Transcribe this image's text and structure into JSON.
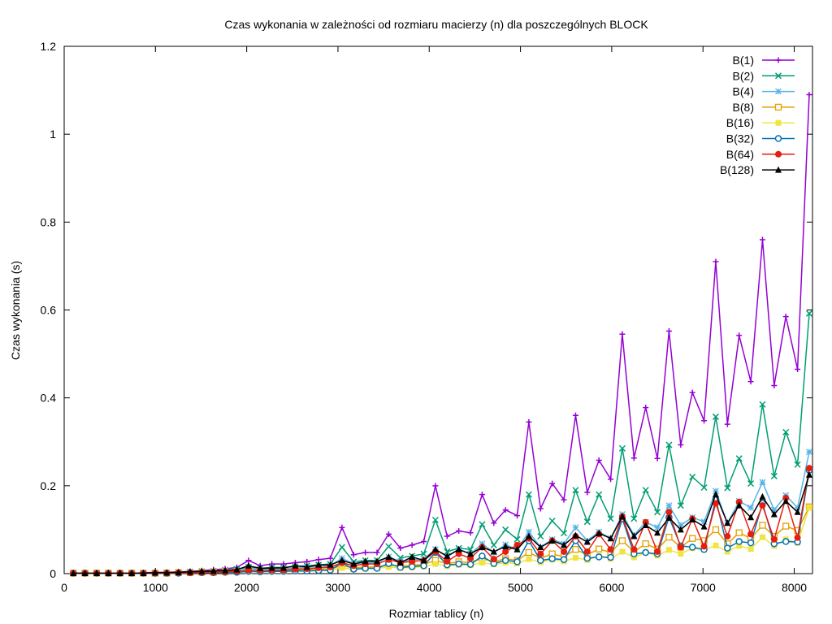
{
  "chart_data": {
    "type": "line",
    "title": "Czas wykonania w zależności od rozmiaru macierzy (n) dla poszczególnych BLOCK",
    "xlabel": "Rozmiar tablicy (n)",
    "ylabel": "Czas wykonania (s)",
    "xlim": [
      0,
      8200
    ],
    "ylim": [
      0,
      1.2
    ],
    "xticks": [
      0,
      1000,
      2000,
      3000,
      4000,
      5000,
      6000,
      7000,
      8000
    ],
    "xtick_labels": [
      "0",
      "1000",
      "2000",
      "3000",
      "4000",
      "5000",
      "6000",
      "7000",
      "8000"
    ],
    "yticks": [
      0,
      0.2,
      0.4,
      0.6,
      0.8,
      1.0,
      1.2
    ],
    "ytick_labels": [
      "0",
      "0.2",
      "0.4",
      "0.6",
      "0.8",
      "1",
      "1.2"
    ],
    "grid": false,
    "legend_position": "top-right",
    "x": [
      100,
      228,
      356,
      484,
      612,
      740,
      868,
      996,
      1124,
      1252,
      1380,
      1508,
      1636,
      1764,
      1892,
      2020,
      2148,
      2276,
      2404,
      2532,
      2660,
      2788,
      2916,
      3044,
      3172,
      3300,
      3428,
      3556,
      3684,
      3812,
      3940,
      4068,
      4196,
      4324,
      4452,
      4580,
      4708,
      4836,
      4964,
      5092,
      5220,
      5348,
      5476,
      5604,
      5732,
      5860,
      5988,
      6116,
      6244,
      6372,
      6500,
      6628,
      6756,
      6884,
      7012,
      7140,
      7268,
      7396,
      7524,
      7652,
      7780,
      7908,
      8036,
      8164
    ],
    "series": [
      {
        "name": "B(1)",
        "color": "#9400d3",
        "marker": "plus",
        "values": [
          0.001,
          0.001,
          0.001,
          0.001,
          0.001,
          0.001,
          0.002,
          0.003,
          0.003,
          0.004,
          0.005,
          0.007,
          0.009,
          0.011,
          0.014,
          0.03,
          0.018,
          0.022,
          0.022,
          0.025,
          0.027,
          0.032,
          0.035,
          0.105,
          0.043,
          0.048,
          0.048,
          0.09,
          0.058,
          0.065,
          0.073,
          0.2,
          0.085,
          0.097,
          0.093,
          0.18,
          0.115,
          0.145,
          0.132,
          0.345,
          0.148,
          0.205,
          0.168,
          0.36,
          0.185,
          0.258,
          0.215,
          0.545,
          0.263,
          0.378,
          0.262,
          0.552,
          0.293,
          0.412,
          0.348,
          0.71,
          0.34,
          0.542,
          0.437,
          0.76,
          0.428,
          0.585,
          0.465,
          1.09
        ]
      },
      {
        "name": "B(2)",
        "color": "#009e73",
        "marker": "cross",
        "values": [
          0.001,
          0.001,
          0.001,
          0.001,
          0.001,
          0.001,
          0.001,
          0.002,
          0.002,
          0.003,
          0.004,
          0.005,
          0.006,
          0.008,
          0.01,
          0.015,
          0.012,
          0.014,
          0.014,
          0.016,
          0.018,
          0.02,
          0.022,
          0.06,
          0.027,
          0.03,
          0.03,
          0.062,
          0.036,
          0.04,
          0.045,
          0.122,
          0.05,
          0.058,
          0.055,
          0.112,
          0.065,
          0.1,
          0.078,
          0.18,
          0.085,
          0.12,
          0.092,
          0.19,
          0.118,
          0.18,
          0.125,
          0.285,
          0.125,
          0.19,
          0.14,
          0.293,
          0.155,
          0.22,
          0.196,
          0.357,
          0.195,
          0.262,
          0.205,
          0.385,
          0.222,
          0.322,
          0.248,
          0.592
        ]
      },
      {
        "name": "B(4)",
        "color": "#56b4e9",
        "marker": "star",
        "values": [
          0.001,
          0.001,
          0.001,
          0.001,
          0.001,
          0.001,
          0.001,
          0.001,
          0.002,
          0.002,
          0.003,
          0.004,
          0.005,
          0.006,
          0.007,
          0.012,
          0.01,
          0.011,
          0.011,
          0.013,
          0.014,
          0.016,
          0.018,
          0.035,
          0.022,
          0.024,
          0.025,
          0.038,
          0.028,
          0.031,
          0.034,
          0.055,
          0.038,
          0.055,
          0.045,
          0.068,
          0.048,
          0.066,
          0.055,
          0.095,
          0.06,
          0.078,
          0.068,
          0.105,
          0.075,
          0.095,
          0.08,
          0.135,
          0.088,
          0.117,
          0.105,
          0.155,
          0.11,
          0.128,
          0.118,
          0.188,
          0.115,
          0.165,
          0.15,
          0.208,
          0.145,
          0.178,
          0.15,
          0.277
        ]
      },
      {
        "name": "B(8)",
        "color": "#e69f00",
        "marker": "open-square",
        "values": [
          0.001,
          0.001,
          0.001,
          0.001,
          0.001,
          0.001,
          0.001,
          0.001,
          0.001,
          0.002,
          0.002,
          0.003,
          0.003,
          0.004,
          0.005,
          0.007,
          0.006,
          0.007,
          0.007,
          0.008,
          0.009,
          0.01,
          0.011,
          0.018,
          0.013,
          0.015,
          0.015,
          0.02,
          0.017,
          0.019,
          0.021,
          0.03,
          0.023,
          0.027,
          0.025,
          0.035,
          0.027,
          0.034,
          0.03,
          0.048,
          0.035,
          0.045,
          0.038,
          0.055,
          0.043,
          0.056,
          0.048,
          0.075,
          0.05,
          0.068,
          0.056,
          0.083,
          0.06,
          0.08,
          0.075,
          0.1,
          0.068,
          0.093,
          0.08,
          0.11,
          0.085,
          0.108,
          0.098,
          0.152
        ]
      },
      {
        "name": "B(16)",
        "color": "#f0e442",
        "marker": "filled-square",
        "values": [
          0.001,
          0.001,
          0.001,
          0.001,
          0.001,
          0.001,
          0.001,
          0.001,
          0.001,
          0.001,
          0.002,
          0.002,
          0.003,
          0.003,
          0.004,
          0.005,
          0.005,
          0.005,
          0.006,
          0.006,
          0.007,
          0.008,
          0.009,
          0.013,
          0.01,
          0.011,
          0.012,
          0.015,
          0.013,
          0.014,
          0.016,
          0.022,
          0.017,
          0.02,
          0.019,
          0.025,
          0.021,
          0.025,
          0.023,
          0.033,
          0.026,
          0.032,
          0.028,
          0.036,
          0.031,
          0.04,
          0.034,
          0.05,
          0.037,
          0.048,
          0.041,
          0.054,
          0.045,
          0.058,
          0.054,
          0.064,
          0.05,
          0.063,
          0.056,
          0.083,
          0.063,
          0.078,
          0.07,
          0.15
        ]
      },
      {
        "name": "B(32)",
        "color": "#0072b2",
        "marker": "open-circle",
        "values": [
          0.001,
          0.001,
          0.001,
          0.001,
          0.001,
          0.001,
          0.001,
          0.001,
          0.001,
          0.001,
          0.002,
          0.002,
          0.002,
          0.003,
          0.003,
          0.005,
          0.004,
          0.005,
          0.005,
          0.006,
          0.006,
          0.007,
          0.008,
          0.025,
          0.01,
          0.012,
          0.012,
          0.023,
          0.014,
          0.016,
          0.018,
          0.048,
          0.02,
          0.022,
          0.021,
          0.04,
          0.023,
          0.03,
          0.027,
          0.075,
          0.03,
          0.034,
          0.032,
          0.075,
          0.035,
          0.038,
          0.037,
          0.125,
          0.045,
          0.048,
          0.045,
          0.128,
          0.063,
          0.06,
          0.055,
          0.17,
          0.058,
          0.073,
          0.07,
          0.16,
          0.068,
          0.073,
          0.072,
          0.235
        ]
      },
      {
        "name": "B(64)",
        "color": "#e51e10",
        "marker": "filled-circle",
        "values": [
          0.001,
          0.001,
          0.001,
          0.001,
          0.001,
          0.001,
          0.001,
          0.001,
          0.001,
          0.002,
          0.002,
          0.003,
          0.003,
          0.004,
          0.005,
          0.008,
          0.007,
          0.008,
          0.008,
          0.01,
          0.011,
          0.013,
          0.015,
          0.025,
          0.018,
          0.022,
          0.022,
          0.032,
          0.025,
          0.028,
          0.03,
          0.05,
          0.028,
          0.045,
          0.035,
          0.06,
          0.033,
          0.05,
          0.065,
          0.08,
          0.045,
          0.075,
          0.05,
          0.085,
          0.05,
          0.09,
          0.055,
          0.13,
          0.055,
          0.117,
          0.05,
          0.14,
          0.06,
          0.125,
          0.062,
          0.16,
          0.085,
          0.163,
          0.09,
          0.155,
          0.078,
          0.172,
          0.082,
          0.24
        ]
      },
      {
        "name": "B(128)",
        "color": "#000000",
        "marker": "filled-triangle",
        "values": [
          0.001,
          0.001,
          0.001,
          0.001,
          0.001,
          0.001,
          0.001,
          0.002,
          0.002,
          0.003,
          0.004,
          0.005,
          0.006,
          0.007,
          0.009,
          0.018,
          0.012,
          0.013,
          0.013,
          0.018,
          0.015,
          0.02,
          0.02,
          0.03,
          0.022,
          0.028,
          0.028,
          0.038,
          0.025,
          0.038,
          0.03,
          0.055,
          0.04,
          0.055,
          0.045,
          0.06,
          0.05,
          0.062,
          0.055,
          0.085,
          0.06,
          0.075,
          0.065,
          0.087,
          0.072,
          0.092,
          0.08,
          0.13,
          0.085,
          0.11,
          0.093,
          0.127,
          0.1,
          0.123,
          0.107,
          0.18,
          0.115,
          0.155,
          0.128,
          0.175,
          0.135,
          0.165,
          0.14,
          0.225
        ]
      }
    ]
  }
}
